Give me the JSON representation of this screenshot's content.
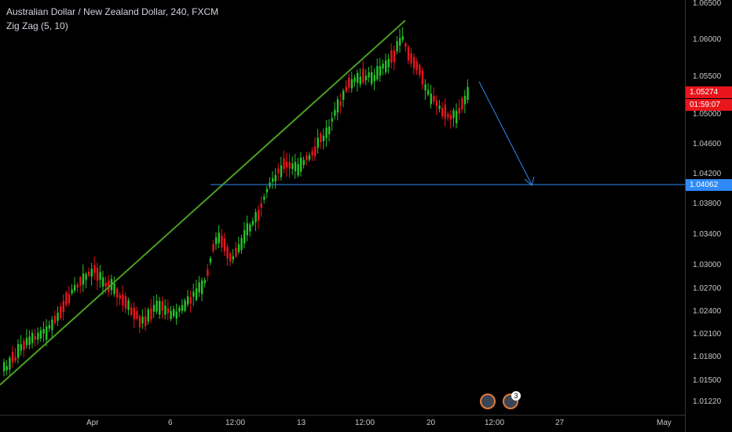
{
  "header": {
    "symbol_line": "Australian Dollar / New Zealand Dollar, 240, FXCM",
    "indicator_line": "Zig Zag (5, 10)"
  },
  "price_axis": {
    "ticks": [
      "1.06500",
      "1.06000",
      "1.05500",
      "1.05000",
      "1.04600",
      "1.04200",
      "1.03800",
      "1.03400",
      "1.03000",
      "1.02700",
      "1.02400",
      "1.02100",
      "1.01800",
      "1.01500",
      "1.01220"
    ],
    "current_price": "1.05274",
    "countdown": "01:59:07",
    "level_price": "1.04062"
  },
  "time_axis": {
    "labels": [
      "Apr",
      "6",
      "12:00",
      "13",
      "12:00",
      "20",
      "12:00",
      "27",
      "May"
    ]
  },
  "events": {
    "badge_count": "3"
  },
  "colors": {
    "up": "#26c32a",
    "down": "#e8151b",
    "zigzag": "#4a9f22",
    "level": "#2f8af5",
    "current": "#e8151b"
  },
  "icons": [
    "earth-icon",
    "earth-icon"
  ]
}
